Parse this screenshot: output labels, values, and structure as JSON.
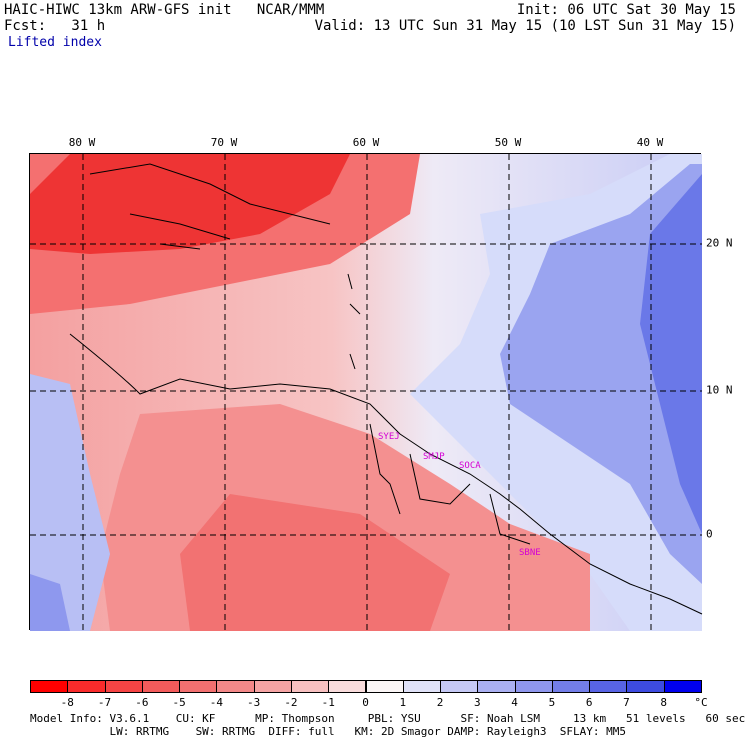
{
  "header": {
    "line1_left": "HAIC-HIWC 13km ARW-GFS init   NCAR/MMM",
    "line2_left": "Fcst:   31 h",
    "line1_right": "Init: 06 UTC Sat 30 May 15",
    "line2_right": "Valid: 13 UTC Sun 31 May 15 (10 LST Sun 31 May 15)",
    "field_name": "Lifted index"
  },
  "map": {
    "lon_labels": [
      "80 W",
      "70 W",
      "60 W",
      "50 W",
      "40 W"
    ],
    "lat_labels": [
      "20 N",
      "10 N",
      "0"
    ],
    "stations": [
      "SYEJ",
      "SMJP",
      "SOCA",
      "SBNE"
    ],
    "field_colors": {
      "strong_negative": "#ee2828",
      "negative": "#f47070",
      "weak_negative": "#f8b0b0",
      "neutral": "#f5eeee",
      "weak_positive": "#d6dcfa",
      "positive": "#9aa4f0",
      "strong_positive": "#5a6ae8"
    }
  },
  "colorbar": {
    "labels": [
      "-8",
      "-7",
      "-6",
      "-5",
      "-4",
      "-3",
      "-2",
      "-1",
      "0",
      "1",
      "2",
      "3",
      "4",
      "5",
      "6",
      "7",
      "8"
    ],
    "unit": "°C",
    "colors": [
      "#ff0000",
      "#fa2b2b",
      "#f64444",
      "#f35b5b",
      "#f27070",
      "#f38888",
      "#f5a4a4",
      "#f7c0c0",
      "#f9dcdc",
      "#fbf6f6",
      "#e0e2f8",
      "#c5c9f5",
      "#aab0f1",
      "#8f97ed",
      "#737ee8",
      "#5864e4",
      "#3d4be0",
      "#0000ee"
    ]
  },
  "footer": {
    "line1": "Model Info: V3.6.1    CU: KF      MP: Thompson     PBL: YSU      SF: Noah LSM     13 km   51 levels   60 sec",
    "line2": "            LW: RRTMG    SW: RRTMG  DIFF: full   KM: 2D Smagor DAMP: Rayleigh3  SFLAY: MM5"
  }
}
